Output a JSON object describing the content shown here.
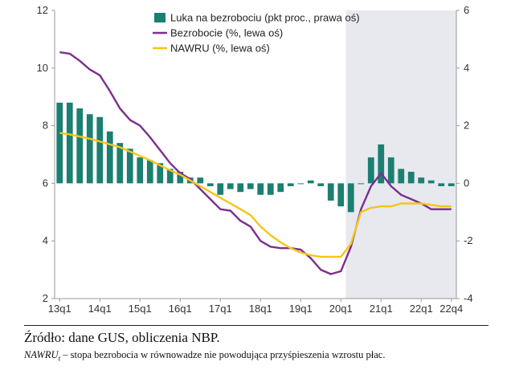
{
  "colors": {
    "bar": "#1b7f72",
    "unemployment": "#7b2f8e",
    "nawru": "#f5c518",
    "shade": "#e7e9ee",
    "axis": "#9a9a9a"
  },
  "chart_data": {
    "type": "bar+line",
    "categories": [
      "13q1",
      "13q2",
      "13q3",
      "13q4",
      "14q1",
      "14q2",
      "14q3",
      "14q4",
      "15q1",
      "15q2",
      "15q3",
      "15q4",
      "16q1",
      "16q2",
      "16q3",
      "16q4",
      "17q1",
      "17q2",
      "17q3",
      "17q4",
      "18q1",
      "18q2",
      "18q3",
      "18q4",
      "19q1",
      "19q2",
      "19q3",
      "19q4",
      "20q1",
      "20q2",
      "20q3",
      "20q4",
      "21q1",
      "21q2",
      "21q3",
      "21q4",
      "22q1",
      "22q2",
      "22q3",
      "22q4"
    ],
    "x_tick_labels": [
      "13q1",
      "14q1",
      "15q1",
      "16q1",
      "17q1",
      "18q1",
      "19q1",
      "20q1",
      "21q1",
      "22q1",
      "22q4"
    ],
    "x_tick_positions": [
      "13q1",
      "14q1",
      "15q1",
      "16q1",
      "17q1",
      "18q1",
      "19q1",
      "20q1",
      "21q1",
      "22q1",
      "22q4"
    ],
    "left_axis": {
      "ylim": [
        2,
        12
      ],
      "ticks": [
        2,
        4,
        6,
        8,
        10,
        12
      ]
    },
    "right_axis": {
      "ylim": [
        -4,
        6
      ],
      "ticks": [
        -4,
        -2,
        0,
        2,
        4,
        6
      ]
    },
    "shaded_from": "20q2",
    "legend_position": "top-center",
    "series": [
      {
        "name": "Luka na bezrobociu (pkt proc., prawa oś)",
        "kind": "bar",
        "axis": "right",
        "values": [
          2.8,
          2.8,
          2.6,
          2.4,
          2.3,
          1.8,
          1.4,
          1.2,
          0.9,
          0.8,
          0.7,
          0.5,
          0.4,
          0.2,
          0.2,
          -0.1,
          -0.4,
          -0.2,
          -0.3,
          -0.2,
          -0.4,
          -0.4,
          -0.3,
          -0.1,
          0.0,
          0.1,
          -0.1,
          -0.6,
          -0.8,
          -1.0,
          0.0,
          0.9,
          1.35,
          0.9,
          0.5,
          0.4,
          0.2,
          0.1,
          -0.1,
          -0.1
        ]
      },
      {
        "name": "Bezrobocie (%, lewa oś)",
        "kind": "line",
        "axis": "left",
        "values": [
          10.55,
          10.5,
          10.25,
          9.95,
          9.75,
          9.2,
          8.6,
          8.2,
          8.0,
          7.6,
          7.15,
          6.7,
          6.35,
          6.15,
          5.8,
          5.45,
          5.1,
          5.05,
          4.7,
          4.5,
          4.0,
          3.8,
          3.75,
          3.75,
          3.7,
          3.4,
          3.0,
          2.85,
          2.95,
          3.8,
          5.1,
          5.9,
          6.35,
          5.9,
          5.6,
          5.45,
          5.3,
          5.1,
          5.1,
          5.1
        ]
      },
      {
        "name": "NAWRU (%, lewa oś)",
        "kind": "line",
        "axis": "left",
        "values": [
          7.75,
          7.7,
          7.62,
          7.55,
          7.45,
          7.35,
          7.25,
          7.1,
          6.95,
          6.8,
          6.62,
          6.45,
          6.3,
          6.1,
          5.9,
          5.7,
          5.5,
          5.3,
          5.1,
          4.9,
          4.5,
          4.2,
          3.95,
          3.75,
          3.6,
          3.5,
          3.45,
          3.45,
          3.45,
          3.9,
          5.0,
          5.15,
          5.2,
          5.2,
          5.3,
          5.3,
          5.3,
          5.25,
          5.2,
          5.2
        ]
      }
    ]
  },
  "footer": {
    "source": "Źródło: dane GUS, obliczenia NBP.",
    "note_term": "NAWRU",
    "note_sub": "t",
    "note_text": " – stopa bezrobocia w równowadze nie powodująca przyśpieszenia wzrostu płac."
  }
}
